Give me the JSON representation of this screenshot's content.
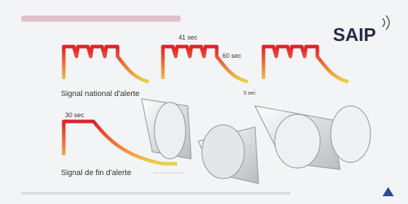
{
  "logo": "SAIP",
  "signals": [
    {
      "label": "Signal national d'alerte",
      "annotations": [
        "41 sec",
        "60 sec",
        "5 sec"
      ]
    },
    {
      "label": "Signal de fin d'alerte",
      "annotations": [
        "30 sec"
      ]
    }
  ]
}
